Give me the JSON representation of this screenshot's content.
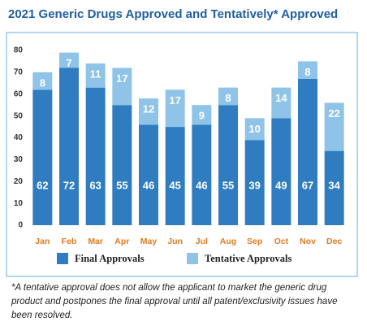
{
  "chart_data": {
    "type": "stacked-bar",
    "title": "2021 Generic Drugs Approved and Tentatively* Approved",
    "categories": [
      "Jan",
      "Feb",
      "Mar",
      "Apr",
      "May",
      "Jun",
      "Jul",
      "Aug",
      "Sep",
      "Oct",
      "Nov",
      "Dec"
    ],
    "series": [
      {
        "name": "Final Approvals",
        "color": "#2f7dc0",
        "values": [
          62,
          72,
          63,
          55,
          46,
          45,
          46,
          55,
          39,
          49,
          67,
          34
        ]
      },
      {
        "name": "Tentative Approvals",
        "color": "#8fc4e8",
        "values": [
          8,
          7,
          11,
          17,
          12,
          17,
          9,
          8,
          10,
          14,
          8,
          22
        ]
      }
    ],
    "ylim": [
      0,
      80
    ],
    "yticks": [
      0,
      10,
      20,
      30,
      40,
      50,
      60,
      70,
      80
    ],
    "grid": false,
    "footnote": "*A tentative approval does not allow the applicant to market the generic drug product and postpones the final approval until all patent/exclusivity issues have been resolved."
  }
}
